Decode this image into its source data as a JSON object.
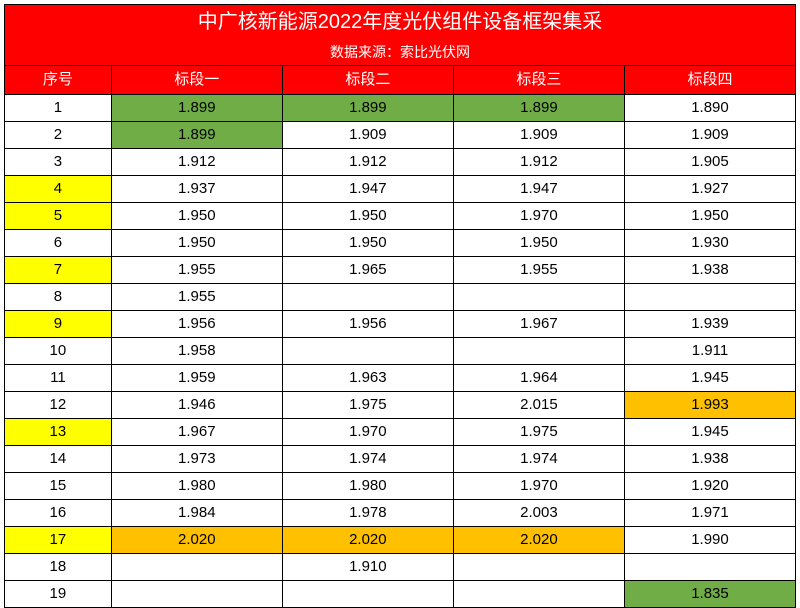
{
  "title": "中广核新能源2022年度光伏组件设备框架集采",
  "source": "数据来源：索比光伏网",
  "columns": [
    "序号",
    "标段一",
    "标段二",
    "标段三",
    "标段四"
  ],
  "colors": {
    "header_bg": "#ff0000",
    "header_text": "#ffffff",
    "green": "#70ad47",
    "yellow": "#ffff00",
    "orange": "#ffc000",
    "border": "#000000",
    "bg": "#ffffff"
  },
  "column_widths_pct": [
    13.5,
    21.625,
    21.625,
    21.625,
    21.625
  ],
  "font": {
    "title_size": 20,
    "source_size": 14,
    "header_size": 15,
    "cell_size": 15,
    "family": "Microsoft YaHei"
  },
  "rows": [
    {
      "seq": "1",
      "c1": "1.899",
      "c2": "1.899",
      "c3": "1.899",
      "c4": "1.890",
      "hl_seq": null,
      "hl_c1": "green",
      "hl_c2": "green",
      "hl_c3": "green",
      "hl_c4": null
    },
    {
      "seq": "2",
      "c1": "1.899",
      "c2": "1.909",
      "c3": "1.909",
      "c4": "1.909",
      "hl_seq": null,
      "hl_c1": "green",
      "hl_c2": null,
      "hl_c3": null,
      "hl_c4": null
    },
    {
      "seq": "3",
      "c1": "1.912",
      "c2": "1.912",
      "c3": "1.912",
      "c4": "1.905",
      "hl_seq": null,
      "hl_c1": null,
      "hl_c2": null,
      "hl_c3": null,
      "hl_c4": null
    },
    {
      "seq": "4",
      "c1": "1.937",
      "c2": "1.947",
      "c3": "1.947",
      "c4": "1.927",
      "hl_seq": "yellow",
      "hl_c1": null,
      "hl_c2": null,
      "hl_c3": null,
      "hl_c4": null
    },
    {
      "seq": "5",
      "c1": "1.950",
      "c2": "1.950",
      "c3": "1.970",
      "c4": "1.950",
      "hl_seq": "yellow",
      "hl_c1": null,
      "hl_c2": null,
      "hl_c3": null,
      "hl_c4": null
    },
    {
      "seq": "6",
      "c1": "1.950",
      "c2": "1.950",
      "c3": "1.950",
      "c4": "1.930",
      "hl_seq": null,
      "hl_c1": null,
      "hl_c2": null,
      "hl_c3": null,
      "hl_c4": null
    },
    {
      "seq": "7",
      "c1": "1.955",
      "c2": "1.965",
      "c3": "1.955",
      "c4": "1.938",
      "hl_seq": "yellow",
      "hl_c1": null,
      "hl_c2": null,
      "hl_c3": null,
      "hl_c4": null
    },
    {
      "seq": "8",
      "c1": "1.955",
      "c2": "",
      "c3": "",
      "c4": "",
      "hl_seq": null,
      "hl_c1": null,
      "hl_c2": null,
      "hl_c3": null,
      "hl_c4": null
    },
    {
      "seq": "9",
      "c1": "1.956",
      "c2": "1.956",
      "c3": "1.967",
      "c4": "1.939",
      "hl_seq": "yellow",
      "hl_c1": null,
      "hl_c2": null,
      "hl_c3": null,
      "hl_c4": null
    },
    {
      "seq": "10",
      "c1": "1.958",
      "c2": "",
      "c3": "",
      "c4": "1.911",
      "hl_seq": null,
      "hl_c1": null,
      "hl_c2": null,
      "hl_c3": null,
      "hl_c4": null
    },
    {
      "seq": "11",
      "c1": "1.959",
      "c2": "1.963",
      "c3": "1.964",
      "c4": "1.945",
      "hl_seq": null,
      "hl_c1": null,
      "hl_c2": null,
      "hl_c3": null,
      "hl_c4": null
    },
    {
      "seq": "12",
      "c1": "1.946",
      "c2": "1.975",
      "c3": "2.015",
      "c4": "1.993",
      "hl_seq": null,
      "hl_c1": null,
      "hl_c2": null,
      "hl_c3": null,
      "hl_c4": "orange"
    },
    {
      "seq": "13",
      "c1": "1.967",
      "c2": "1.970",
      "c3": "1.975",
      "c4": "1.945",
      "hl_seq": "yellow",
      "hl_c1": null,
      "hl_c2": null,
      "hl_c3": null,
      "hl_c4": null
    },
    {
      "seq": "14",
      "c1": "1.973",
      "c2": "1.974",
      "c3": "1.974",
      "c4": "1.938",
      "hl_seq": null,
      "hl_c1": null,
      "hl_c2": null,
      "hl_c3": null,
      "hl_c4": null
    },
    {
      "seq": "15",
      "c1": "1.980",
      "c2": "1.980",
      "c3": "1.970",
      "c4": "1.920",
      "hl_seq": null,
      "hl_c1": null,
      "hl_c2": null,
      "hl_c3": null,
      "hl_c4": null
    },
    {
      "seq": "16",
      "c1": "1.984",
      "c2": "1.978",
      "c3": "2.003",
      "c4": "1.971",
      "hl_seq": null,
      "hl_c1": null,
      "hl_c2": null,
      "hl_c3": null,
      "hl_c4": null
    },
    {
      "seq": "17",
      "c1": "2.020",
      "c2": "2.020",
      "c3": "2.020",
      "c4": "1.990",
      "hl_seq": "yellow",
      "hl_c1": "orange",
      "hl_c2": "orange",
      "hl_c3": "orange",
      "hl_c4": null
    },
    {
      "seq": "18",
      "c1": "",
      "c2": "1.910",
      "c3": "",
      "c4": "",
      "hl_seq": null,
      "hl_c1": null,
      "hl_c2": null,
      "hl_c3": null,
      "hl_c4": null
    },
    {
      "seq": "19",
      "c1": "",
      "c2": "",
      "c3": "",
      "c4": "1.835",
      "hl_seq": null,
      "hl_c1": null,
      "hl_c2": null,
      "hl_c3": null,
      "hl_c4": "green"
    }
  ]
}
